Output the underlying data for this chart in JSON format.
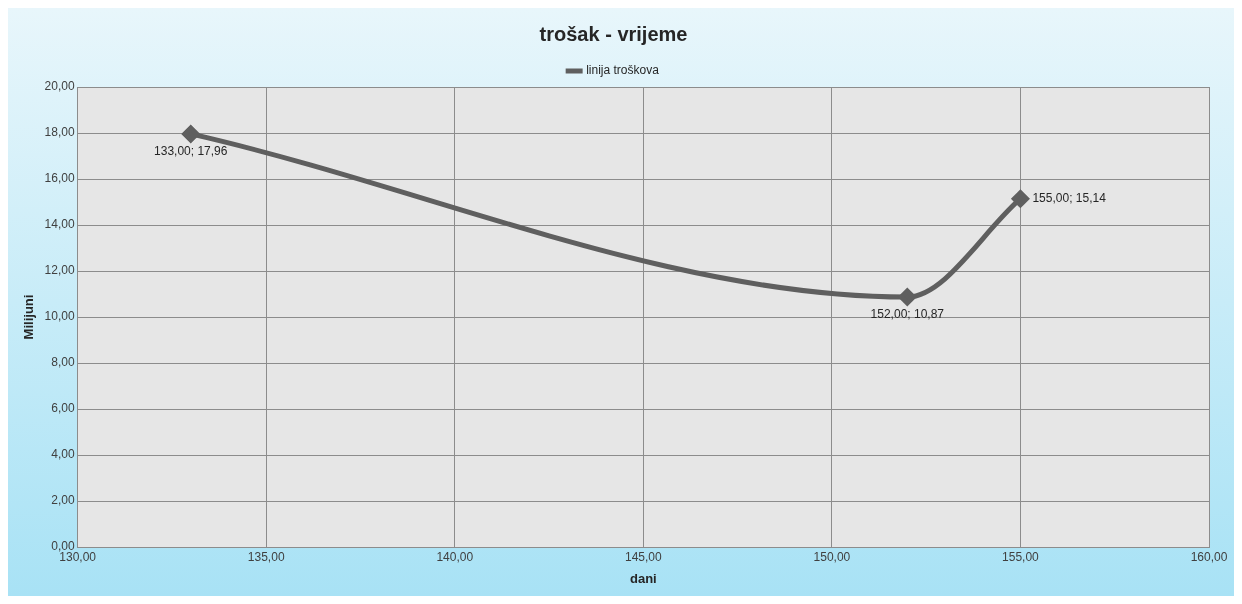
{
  "chart_data": {
    "type": "line",
    "title": "trošak - vrijeme",
    "xlabel": "dani",
    "ylabel": "Milijuni",
    "x": [
      133,
      152,
      155
    ],
    "series": [
      {
        "name": "linija troškova",
        "color": "#5f5f5f",
        "values": [
          17.96,
          10.87,
          15.14
        ],
        "value_labels": [
          "133,00; 17,96",
          "152,00; 10,87",
          "155,00; 15,14"
        ]
      }
    ],
    "xlim": [
      130,
      160
    ],
    "xticks": [
      {
        "value": 130,
        "label": "130,00"
      },
      {
        "value": 135,
        "label": "135,00"
      },
      {
        "value": 140,
        "label": "140,00"
      },
      {
        "value": 145,
        "label": "145,00"
      },
      {
        "value": 150,
        "label": "150,00"
      },
      {
        "value": 155,
        "label": "155,00"
      },
      {
        "value": 160,
        "label": "160,00"
      }
    ],
    "ylim": [
      0,
      20
    ],
    "yticks": [
      {
        "value": 0,
        "label": "0,00"
      },
      {
        "value": 2,
        "label": "2,00"
      },
      {
        "value": 4,
        "label": "4,00"
      },
      {
        "value": 6,
        "label": "6,00"
      },
      {
        "value": 8,
        "label": "8,00"
      },
      {
        "value": 10,
        "label": "10,00"
      },
      {
        "value": 12,
        "label": "12,00"
      },
      {
        "value": 14,
        "label": "14,00"
      },
      {
        "value": 16,
        "label": "16,00"
      },
      {
        "value": 18,
        "label": "18,00"
      },
      {
        "value": 20,
        "label": "20,00"
      }
    ],
    "grid": true,
    "legend": "top",
    "marker": "diamond",
    "line_style": "solid"
  }
}
